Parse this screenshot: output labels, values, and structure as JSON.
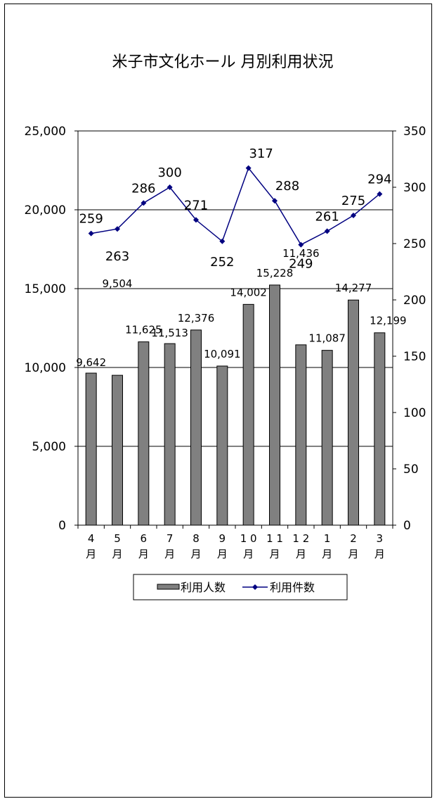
{
  "chart_data": {
    "type": "bar",
    "title": "米子市文化ホール 月別利用状況",
    "categories": [
      [
        "4",
        "月"
      ],
      [
        "5",
        "月"
      ],
      [
        "6",
        "月"
      ],
      [
        "7",
        "月"
      ],
      [
        "8",
        "月"
      ],
      [
        "9",
        "月"
      ],
      [
        "1 0",
        "月"
      ],
      [
        "1 1",
        "月"
      ],
      [
        "1 2",
        "月"
      ],
      [
        "1",
        "月"
      ],
      [
        "2",
        "月"
      ],
      [
        "3",
        "月"
      ]
    ],
    "series": [
      {
        "name": "利用人数",
        "kind": "bar",
        "axis": "left",
        "color": "#808080",
        "values": [
          9642,
          9504,
          11625,
          11513,
          12376,
          10091,
          14002,
          15228,
          11436,
          11087,
          14277,
          12199
        ],
        "labels": [
          "9,642",
          "9,504",
          "11,625",
          "11,513",
          "12,376",
          "10,091",
          "14,002",
          "15,228",
          "11,436",
          "11,087",
          "14,277",
          "12,199"
        ]
      },
      {
        "name": "利用件数",
        "kind": "line",
        "axis": "right",
        "color": "#000080",
        "values": [
          259,
          263,
          286,
          300,
          271,
          252,
          317,
          288,
          249,
          261,
          275,
          294
        ],
        "labels": [
          "259",
          "263",
          "286",
          "300",
          "271",
          "252",
          "317",
          "288",
          "249",
          "261",
          "275",
          "294"
        ]
      }
    ],
    "y_left": {
      "min": 0,
      "max": 25000,
      "ticks": [
        0,
        5000,
        10000,
        15000,
        20000,
        25000
      ],
      "tick_labels": [
        "0",
        "5,000",
        "10,000",
        "15,000",
        "20,000",
        "25,000"
      ]
    },
    "y_right": {
      "min": 0,
      "max": 350,
      "ticks": [
        0,
        50,
        100,
        150,
        200,
        250,
        300,
        350
      ],
      "tick_labels": [
        "0",
        "50",
        "100",
        "150",
        "200",
        "250",
        "300",
        "350"
      ]
    },
    "grid": true,
    "legend_position": "bottom"
  }
}
